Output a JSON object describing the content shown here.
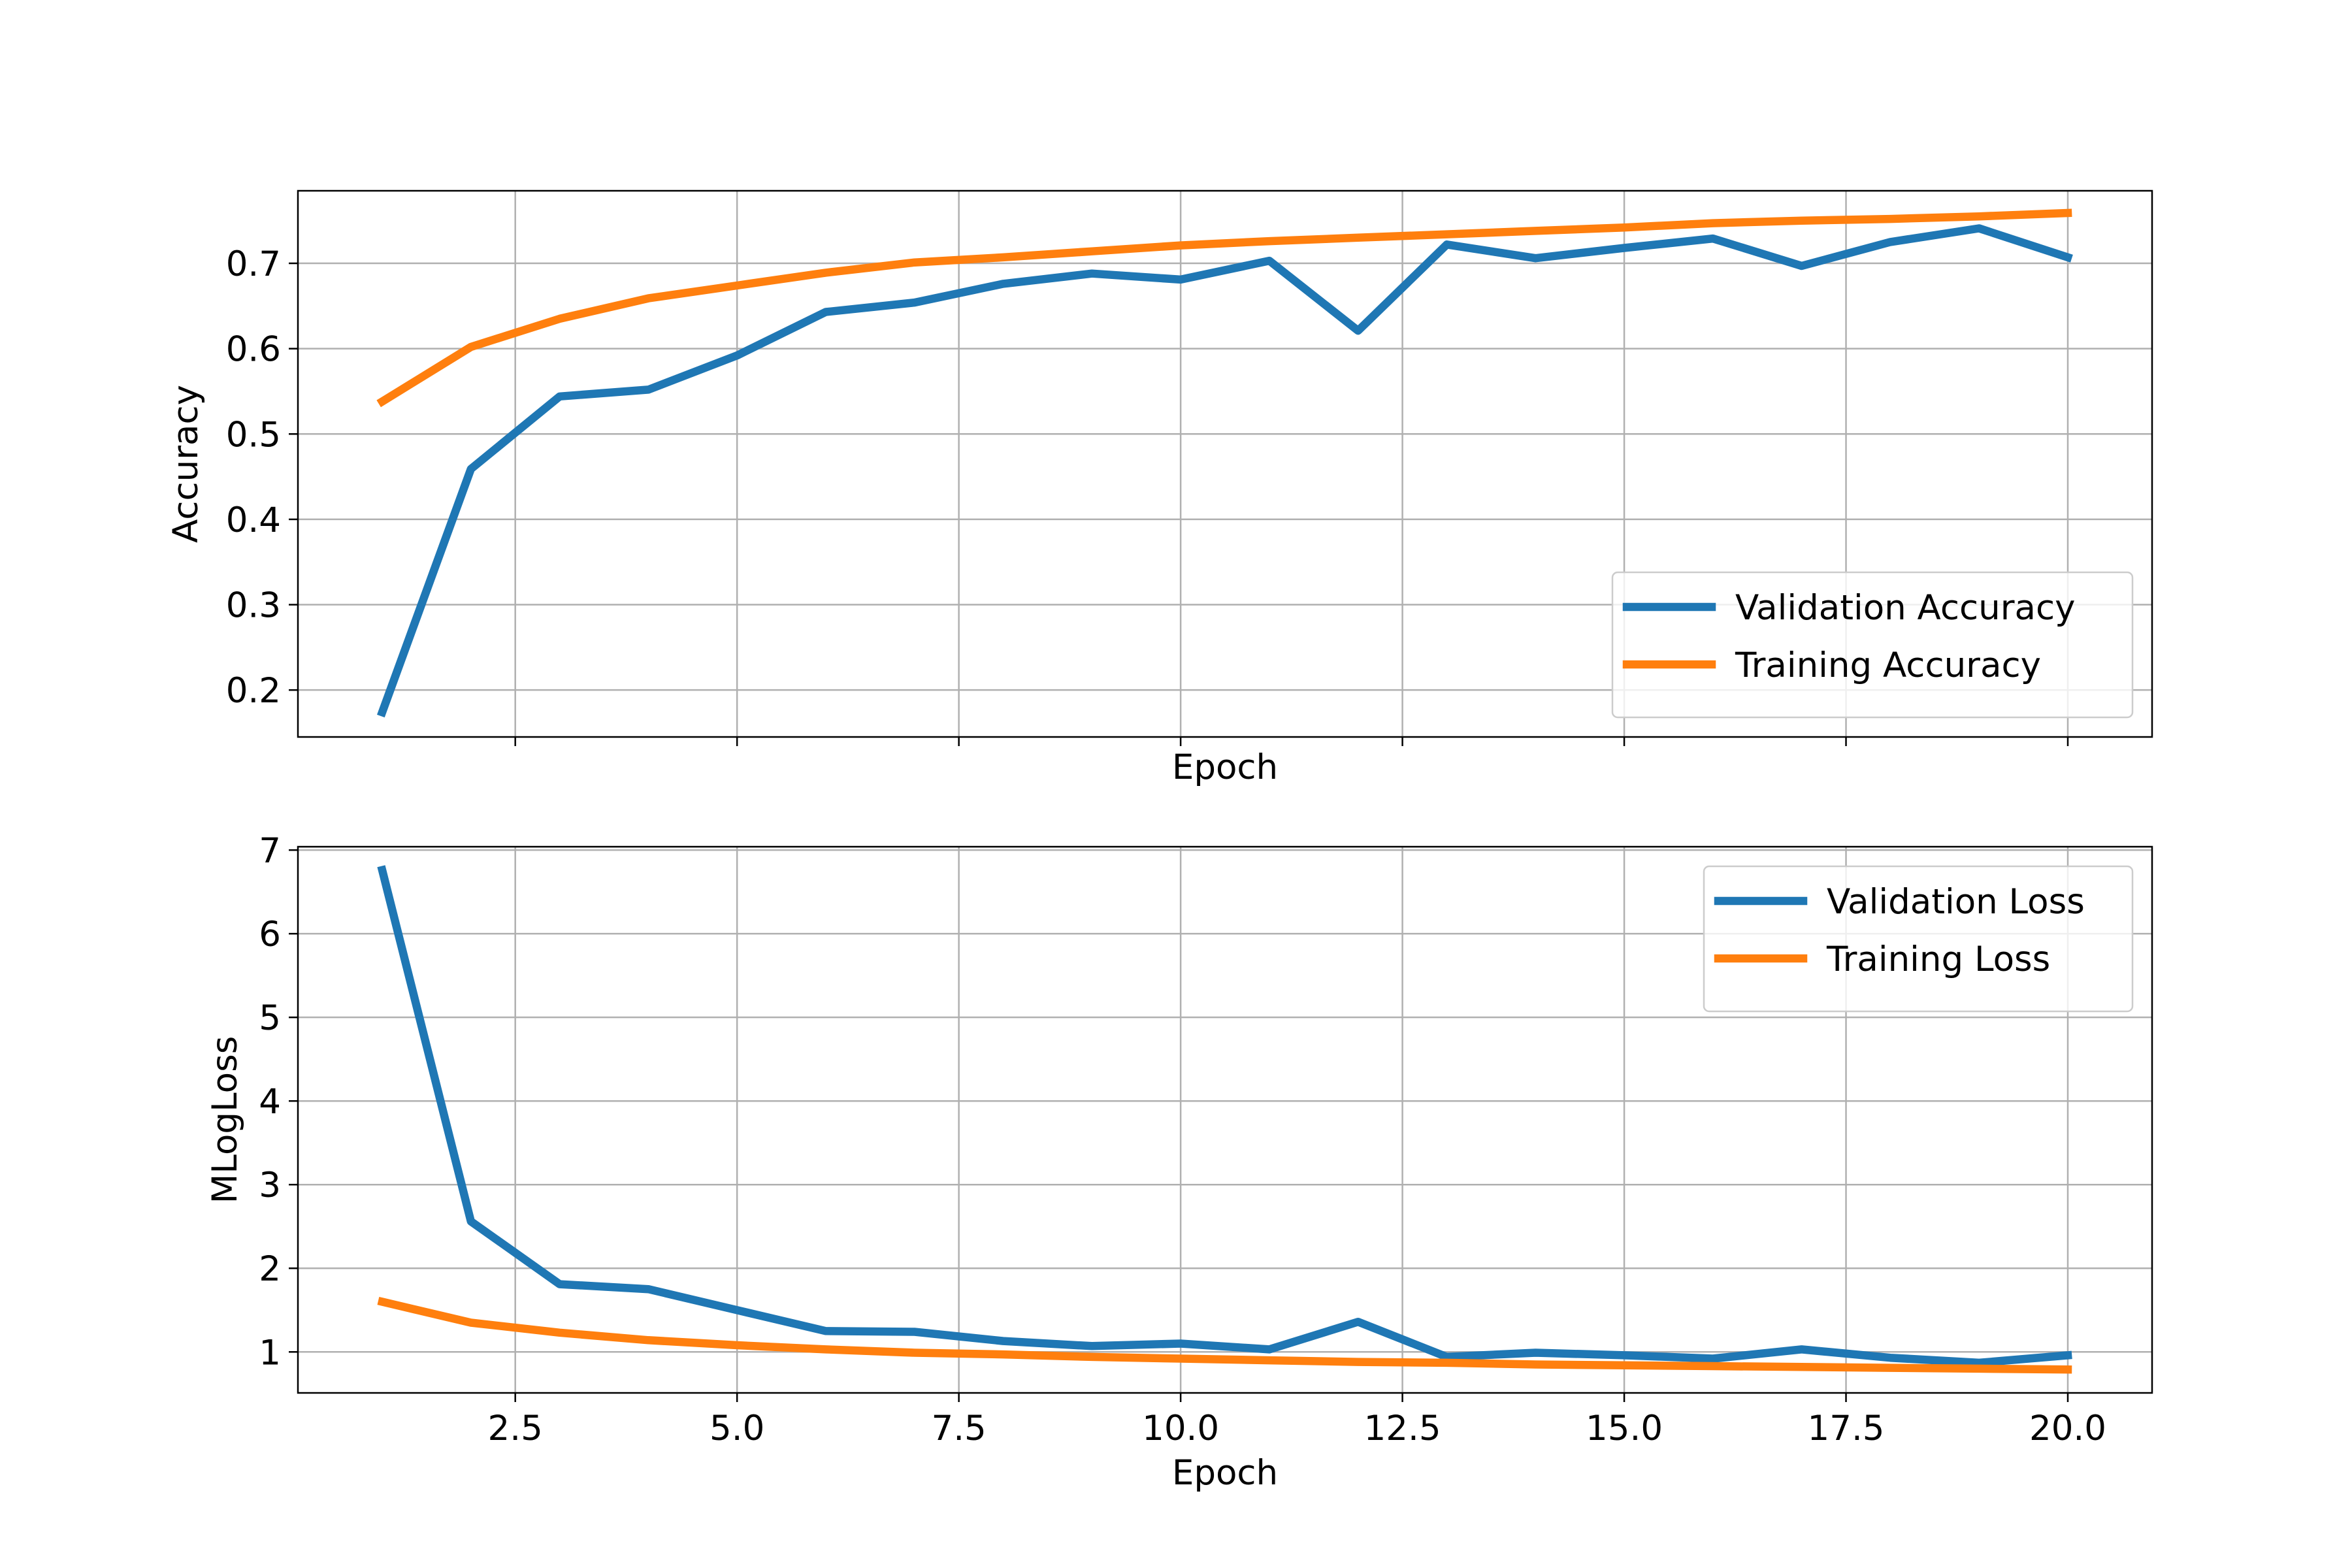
{
  "chart_data": [
    {
      "type": "line",
      "xlabel": "Epoch",
      "ylabel": "Accuracy",
      "xlim": [
        0.05,
        20.95
      ],
      "ylim": [
        0.145,
        0.785
      ],
      "xticks": [
        2.5,
        5.0,
        7.5,
        10.0,
        12.5,
        15.0,
        17.5,
        20.0
      ],
      "xtick_labels": [
        "",
        "",
        "",
        "",
        "",
        "",
        "",
        ""
      ],
      "yticks": [
        0.2,
        0.3,
        0.4,
        0.5,
        0.6,
        0.7
      ],
      "ytick_labels": [
        "0.2",
        "0.3",
        "0.4",
        "0.5",
        "0.6",
        "0.7"
      ],
      "grid": true,
      "legend_position": "lower-right",
      "x": [
        1,
        2,
        3,
        4,
        5,
        6,
        7,
        8,
        9,
        10,
        11,
        12,
        13,
        14,
        15,
        16,
        17,
        18,
        19,
        20
      ],
      "series": [
        {
          "name": "Validation Accuracy",
          "color": "#1f77b4",
          "values": [
            0.174,
            0.459,
            0.544,
            0.552,
            0.592,
            0.643,
            0.654,
            0.676,
            0.688,
            0.681,
            0.703,
            0.621,
            0.722,
            0.706,
            0.718,
            0.729,
            0.697,
            0.725,
            0.741,
            0.707
          ]
        },
        {
          "name": "Training Accuracy",
          "color": "#ff7f0e",
          "values": [
            0.538,
            0.602,
            0.635,
            0.659,
            0.674,
            0.689,
            0.701,
            0.707,
            0.714,
            0.721,
            0.726,
            0.73,
            0.734,
            0.738,
            0.742,
            0.747,
            0.75,
            0.752,
            0.755,
            0.759
          ]
        }
      ]
    },
    {
      "type": "line",
      "xlabel": "Epoch",
      "ylabel": "MLogLoss",
      "xlim": [
        0.05,
        20.95
      ],
      "ylim": [
        0.51,
        7.04
      ],
      "xticks": [
        2.5,
        5.0,
        7.5,
        10.0,
        12.5,
        15.0,
        17.5,
        20.0
      ],
      "xtick_labels": [
        "2.5",
        "5.0",
        "7.5",
        "10.0",
        "12.5",
        "15.0",
        "17.5",
        "20.0"
      ],
      "yticks": [
        1,
        2,
        3,
        4,
        5,
        6,
        7
      ],
      "ytick_labels": [
        "1",
        "2",
        "3",
        "4",
        "5",
        "6",
        "7"
      ],
      "grid": true,
      "legend_position": "upper-right",
      "x": [
        1,
        2,
        3,
        4,
        5,
        6,
        7,
        8,
        9,
        10,
        11,
        12,
        13,
        14,
        15,
        16,
        17,
        18,
        19,
        20
      ],
      "series": [
        {
          "name": "Validation Loss",
          "color": "#1f77b4",
          "values": [
            6.76,
            2.56,
            1.81,
            1.75,
            1.5,
            1.25,
            1.24,
            1.13,
            1.07,
            1.1,
            1.03,
            1.36,
            0.94,
            0.99,
            0.96,
            0.92,
            1.03,
            0.93,
            0.87,
            0.96
          ]
        },
        {
          "name": "Training Loss",
          "color": "#ff7f0e",
          "values": [
            1.6,
            1.35,
            1.23,
            1.14,
            1.08,
            1.03,
            0.99,
            0.97,
            0.94,
            0.92,
            0.9,
            0.88,
            0.87,
            0.85,
            0.84,
            0.83,
            0.82,
            0.81,
            0.8,
            0.79
          ]
        }
      ]
    }
  ]
}
